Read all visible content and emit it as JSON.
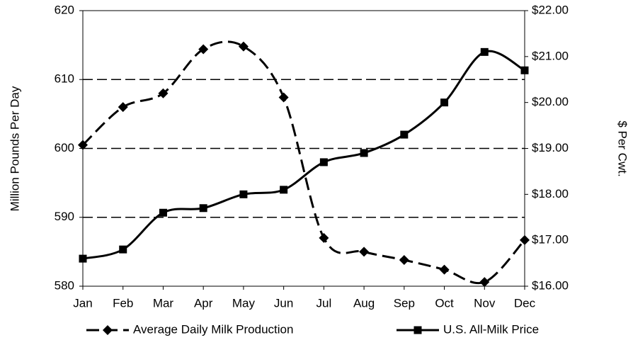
{
  "chart_data": {
    "type": "line",
    "categories": [
      "Jan",
      "Feb",
      "Mar",
      "Apr",
      "May",
      "Jun",
      "Jul",
      "Aug",
      "Sep",
      "Oct",
      "Nov",
      "Dec"
    ],
    "ylabel": "Million Pounds Per Day",
    "y2label": "$ Per Cwt.",
    "ylim": [
      580,
      620
    ],
    "yticks": [
      580,
      590,
      600,
      610,
      620
    ],
    "y2lim": [
      16,
      22
    ],
    "y2ticks": [
      {
        "value": 16,
        "label": "$16.00"
      },
      {
        "value": 17,
        "label": "$17.00"
      },
      {
        "value": 18,
        "label": "$18.00"
      },
      {
        "value": 19,
        "label": "$19.00"
      },
      {
        "value": 20,
        "label": "$20.00"
      },
      {
        "value": 21,
        "label": "$21.00"
      },
      {
        "value": 22,
        "label": "$22.00"
      }
    ],
    "grid": true,
    "legend": "bottom",
    "series": [
      {
        "name": "Average Daily Milk Production",
        "color": "#000000",
        "dashed": true,
        "marker": "diamond",
        "values": [
          600.5,
          606.0,
          608.0,
          614.4,
          614.8,
          607.4,
          587.0,
          585.0,
          583.8,
          582.4,
          580.6,
          586.7
        ]
      },
      {
        "name": "U.S. All-Milk Price",
        "color": "#000000",
        "dashed": false,
        "marker": "square",
        "axis": "y2",
        "values": [
          16.6,
          16.8,
          17.6,
          17.7,
          18.0,
          18.1,
          18.7,
          18.9,
          19.3,
          20.0,
          21.1,
          20.7
        ]
      }
    ]
  }
}
